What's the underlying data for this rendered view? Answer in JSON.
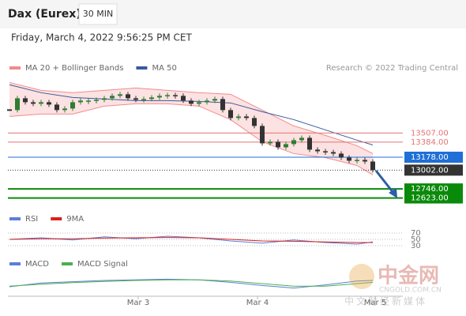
{
  "chart_data": [
    {
      "type": "candlestick",
      "title": "Dax (Eurex)",
      "interval": "30 MIN",
      "date": "Friday, March 4, 2022 9:56:25 PM CET",
      "credit": "Research © 2022 Trading Central",
      "xlim": [
        -0.2,
        49.8
      ],
      "ylim": [
        12500,
        14620
      ],
      "up_color": "#2e7d32",
      "down_color": "#333333",
      "closes": [
        13820,
        13981,
        13927,
        13906,
        13927,
        13895,
        13820,
        13841,
        13927,
        13949,
        13949,
        13960,
        13981,
        14014,
        14035,
        13981,
        13960,
        13971,
        13992,
        14014,
        14024,
        14014,
        13949,
        13906,
        13927,
        13949,
        13971,
        13820,
        13712,
        13733,
        13712,
        13604,
        13367,
        13388,
        13313,
        13356,
        13410,
        13442,
        13281,
        13259,
        13248,
        13227,
        13173,
        13130,
        13141,
        13119,
        13002
      ],
      "series": [
        {
          "name": "MA 20 + Bollinger Bands",
          "color": "#f28b8b",
          "x": [
            0,
            4,
            8,
            12,
            16,
            20,
            24,
            28,
            32,
            36,
            40,
            44,
            46
          ],
          "upper": [
            14197,
            14089,
            14057,
            14089,
            14121,
            14089,
            14057,
            14035,
            13820,
            13604,
            13475,
            13335,
            13227
          ],
          "lower": [
            13733,
            13766,
            13766,
            13873,
            13906,
            13906,
            13873,
            13690,
            13388,
            13227,
            13173,
            13065,
            12936
          ]
        },
        {
          "name": "MA 50",
          "color": "#3a5a9c",
          "x": [
            0,
            4,
            8,
            12,
            16,
            20,
            24,
            28,
            32,
            36,
            40,
            44,
            46
          ],
          "values": [
            14165,
            14057,
            13992,
            13971,
            13949,
            13949,
            13938,
            13917,
            13798,
            13690,
            13550,
            13410,
            13345
          ]
        }
      ],
      "levels": [
        {
          "value": 13507,
          "label": "13507.00",
          "color": "#e57373",
          "box": false
        },
        {
          "value": 13384,
          "label": "13384.00",
          "color": "#e57373",
          "box": false
        },
        {
          "value": 13178,
          "label": "13178.00",
          "color": "#1f6fd6",
          "box": true
        },
        {
          "value": 13002,
          "label": "13002.00",
          "color": "#333333",
          "box": true
        },
        {
          "value": 12746,
          "label": "12746.00",
          "color": "#0a8a0a",
          "box": true
        },
        {
          "value": 12623,
          "label": "12623.00",
          "color": "#0a8a0a",
          "box": true
        }
      ]
    },
    {
      "type": "line",
      "xlim": [
        -0.2,
        49.8
      ],
      "ylim": [
        20,
        85
      ],
      "yticks": [
        30,
        50,
        70
      ],
      "series": [
        {
          "name": "RSI",
          "color": "#5b7fd6",
          "x": [
            0,
            4,
            8,
            12,
            16,
            20,
            24,
            28,
            32,
            36,
            40,
            44,
            46
          ],
          "values": [
            50,
            55,
            48,
            58,
            52,
            60,
            55,
            45,
            38,
            48,
            40,
            35,
            42
          ]
        },
        {
          "name": "9MA",
          "color": "#d62020",
          "x": [
            0,
            4,
            8,
            12,
            16,
            20,
            24,
            28,
            32,
            36,
            40,
            44,
            46
          ],
          "values": [
            50,
            52,
            52,
            54,
            55,
            56,
            55,
            50,
            45,
            44,
            42,
            40,
            40
          ]
        }
      ]
    },
    {
      "type": "line",
      "xlim": [
        -0.2,
        49.8
      ],
      "ylim": [
        -40,
        40
      ],
      "xticks": [
        {
          "value": 16.3,
          "label": "Mar 3"
        },
        {
          "value": 31.4,
          "label": "Mar 4"
        },
        {
          "value": 46.3,
          "label": "Mar 5"
        }
      ],
      "series": [
        {
          "name": "MACD",
          "color": "#5b7fd6",
          "x": [
            0,
            4,
            8,
            12,
            16,
            20,
            24,
            28,
            32,
            36,
            40,
            44,
            46
          ],
          "values": [
            -10,
            2,
            6,
            10,
            12,
            14,
            12,
            4,
            -6,
            -14,
            -4,
            8,
            10
          ]
        },
        {
          "name": "MACD Signal",
          "color": "#4caf50",
          "x": [
            0,
            4,
            8,
            12,
            16,
            20,
            24,
            28,
            32,
            36,
            40,
            44,
            46
          ],
          "values": [
            -8,
            -2,
            3,
            7,
            10,
            12,
            12,
            8,
            0,
            -8,
            -8,
            0,
            4
          ]
        }
      ]
    }
  ],
  "watermark": {
    "logo": "中金网",
    "domain": "CNGOLD.COM.CN",
    "slogan": "中文财经新媒体"
  }
}
